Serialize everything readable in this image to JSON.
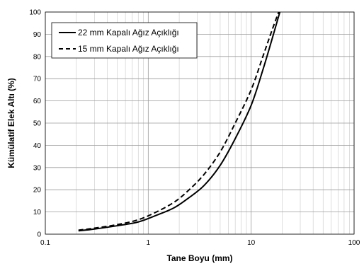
{
  "chart_data": {
    "type": "line",
    "xlabel": "Tane Boyu (mm)",
    "ylabel": "Kümülatif Elek Altı (%)",
    "xscale": "log",
    "xlim": [
      0.1,
      100
    ],
    "ylim": [
      0,
      100
    ],
    "x_ticks": [
      0.1,
      1,
      10,
      100
    ],
    "x_tick_labels": [
      "0.1",
      "1",
      "10",
      "100"
    ],
    "y_ticks": [
      0,
      10,
      20,
      30,
      40,
      50,
      60,
      70,
      80,
      90,
      100
    ],
    "y_tick_labels": [
      "0",
      "10",
      "20",
      "30",
      "40",
      "50",
      "60",
      "70",
      "80",
      "90",
      "100"
    ],
    "grid": true,
    "legend_position": "top-left",
    "series": [
      {
        "name": "22 mm Kapalı Ağız Açıklığı",
        "style": "solid",
        "color": "#000000",
        "x": [
          0.21,
          0.3,
          0.5,
          0.8,
          1.2,
          1.8,
          2.5,
          3.5,
          5,
          7,
          10,
          13,
          16,
          19
        ],
        "y": [
          1.5,
          2.3,
          3.8,
          5.5,
          8.5,
          12,
          16.5,
          22,
          31,
          43,
          58,
          74,
          88,
          100
        ]
      },
      {
        "name": "15 mm Kapalı Ağız Açıklığı",
        "style": "dashed",
        "color": "#000000",
        "x": [
          0.21,
          0.3,
          0.5,
          0.8,
          1.2,
          1.8,
          2.5,
          3.5,
          5,
          7,
          10,
          13,
          16,
          18.5
        ],
        "y": [
          1.8,
          2.7,
          4.3,
          6.5,
          10,
          14.5,
          20,
          27,
          37,
          50,
          65,
          80,
          92,
          100
        ]
      }
    ]
  }
}
